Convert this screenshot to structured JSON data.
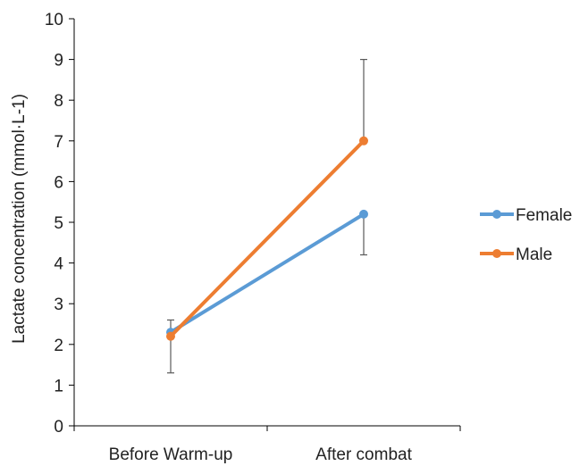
{
  "chart_data": {
    "type": "line",
    "categories": [
      "Before Warm-up",
      "After combat"
    ],
    "ylabel": "Lactate concentration  (mmol·L-1)",
    "ylim": [
      0,
      10
    ],
    "yticks": [
      0,
      1,
      2,
      3,
      4,
      5,
      6,
      7,
      8,
      9,
      10
    ],
    "grid": false,
    "legend_position": "right",
    "series": [
      {
        "name": "Female",
        "color": "#5b9bd5",
        "values": [
          2.3,
          5.2
        ],
        "error_low": [
          null,
          4.2
        ],
        "error_high": [
          2.6,
          null
        ]
      },
      {
        "name": "Male",
        "color": "#ed7d31",
        "values": [
          2.2,
          7.0
        ],
        "error_low": [
          1.3,
          null
        ],
        "error_high": [
          null,
          9.0
        ]
      }
    ]
  }
}
